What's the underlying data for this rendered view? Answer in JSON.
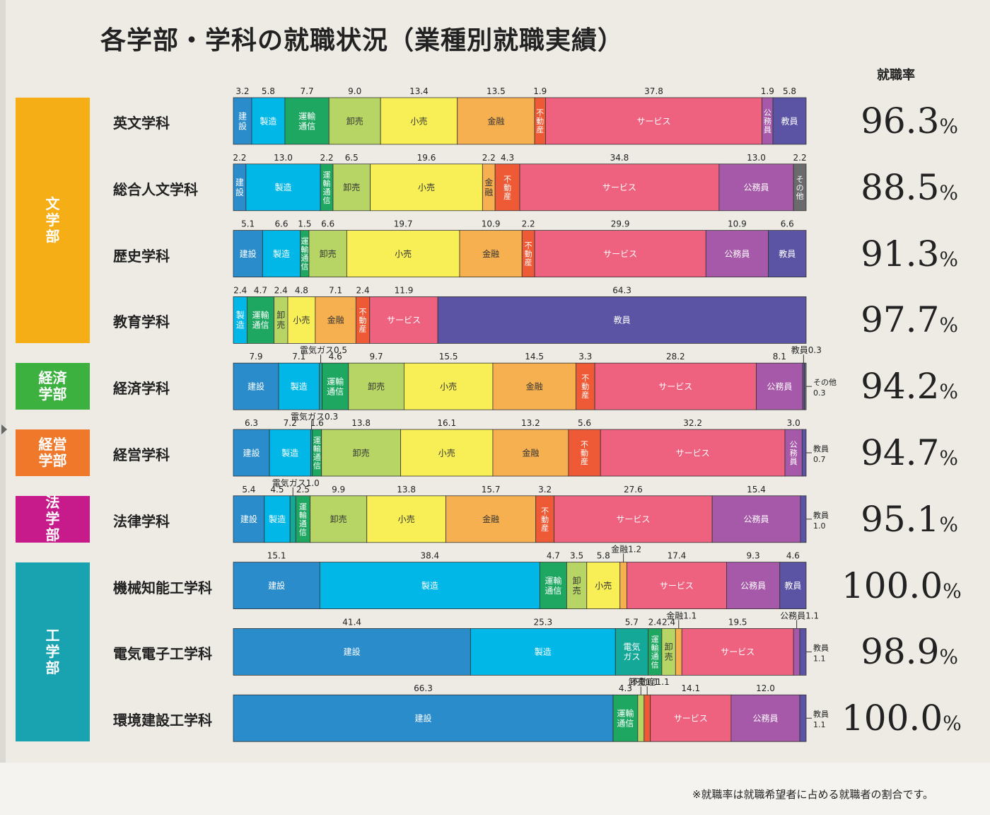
{
  "title": "各学部・学科の就職状況（業種別就職実績）",
  "rate_header": "就職率",
  "footnote": "※就職率は就職希望者に占める就職者の割合です。",
  "percent_sign": "%",
  "colors": {
    "建設": "#2b8ccb",
    "製造": "#00b7e8",
    "電気ガス": "#14a898",
    "運輸通信": "#1ea761",
    "卸売": "#b6d565",
    "小売": "#f7ef55",
    "金融": "#f6b050",
    "不動産": "#ee5a35",
    "サービス": "#ee6280",
    "公務員": "#a659a8",
    "教員": "#5b53a3",
    "その他": "#6b6b6b"
  },
  "faculties": [
    {
      "name": "文\n学\n部",
      "color": "#f6ae17",
      "rows": [
        0,
        3
      ]
    },
    {
      "name": "経済\n学部",
      "color": "#3cb13f",
      "rows": [
        4,
        4
      ]
    },
    {
      "name": "経営\n学部",
      "color": "#f0782a",
      "rows": [
        5,
        5
      ]
    },
    {
      "name": "法\n学\n部",
      "color": "#c71a8b",
      "rows": [
        6,
        6
      ]
    },
    {
      "name": "工\n学\n部",
      "color": "#19a3b1",
      "rows": [
        7,
        9
      ]
    }
  ],
  "chart_data": {
    "type": "bar",
    "stacked": true,
    "orientation": "horizontal",
    "unit": "%",
    "rows": [
      {
        "dept": "英文学科",
        "rate": "96.3",
        "segments": [
          {
            "cat": "建設",
            "label": "建\n設",
            "value": 3.2
          },
          {
            "cat": "製造",
            "label": "製造",
            "value": 5.8
          },
          {
            "cat": "運輸通信",
            "label": "運輸\n通信",
            "value": 7.7
          },
          {
            "cat": "卸売",
            "label": "卸売",
            "value": 9.0
          },
          {
            "cat": "小売",
            "label": "小売",
            "value": 13.4
          },
          {
            "cat": "金融",
            "label": "金融",
            "value": 13.5
          },
          {
            "cat": "不動産",
            "label": "不\n動\n産",
            "value": 1.9
          },
          {
            "cat": "サービス",
            "label": "サービス",
            "value": 37.8
          },
          {
            "cat": "公務員",
            "label": "公\n務\n員",
            "value": 1.9
          },
          {
            "cat": "教員",
            "label": "教員",
            "value": 5.8
          }
        ]
      },
      {
        "dept": "総合人文学科",
        "rate": "88.5",
        "segments": [
          {
            "cat": "建設",
            "label": "建\n設",
            "value": 2.2
          },
          {
            "cat": "製造",
            "label": "製造",
            "value": 13.0
          },
          {
            "cat": "運輸通信",
            "label": "運\n輸\n通\n信",
            "value": 2.2
          },
          {
            "cat": "卸売",
            "label": "卸売",
            "value": 6.5
          },
          {
            "cat": "小売",
            "label": "小売",
            "value": 19.6
          },
          {
            "cat": "金融",
            "label": "金\n融",
            "value": 2.2
          },
          {
            "cat": "不動産",
            "label": "不\n動\n産",
            "value": 4.3
          },
          {
            "cat": "サービス",
            "label": "サービス",
            "value": 34.8
          },
          {
            "cat": "公務員",
            "label": "公務員",
            "value": 13.0
          },
          {
            "cat": "その他",
            "label": "そ\nの\n他",
            "value": 2.2
          }
        ]
      },
      {
        "dept": "歴史学科",
        "rate": "91.3",
        "segments": [
          {
            "cat": "建設",
            "label": "建設",
            "value": 5.1
          },
          {
            "cat": "製造",
            "label": "製造",
            "value": 6.6
          },
          {
            "cat": "運輸通信",
            "label": "運\n輸\n通\n信",
            "value": 1.5
          },
          {
            "cat": "卸売",
            "label": "卸売",
            "value": 6.6
          },
          {
            "cat": "小売",
            "label": "小売",
            "value": 19.7
          },
          {
            "cat": "金融",
            "label": "金融",
            "value": 10.9
          },
          {
            "cat": "不動産",
            "label": "不\n動\n産",
            "value": 2.2
          },
          {
            "cat": "サービス",
            "label": "サービス",
            "value": 29.9
          },
          {
            "cat": "公務員",
            "label": "公務員",
            "value": 10.9
          },
          {
            "cat": "教員",
            "label": "教員",
            "value": 6.6
          }
        ]
      },
      {
        "dept": "教育学科",
        "rate": "97.7",
        "segments": [
          {
            "cat": "製造",
            "label": "製\n造",
            "value": 2.4
          },
          {
            "cat": "運輸通信",
            "label": "運輸\n通信",
            "value": 4.7
          },
          {
            "cat": "卸売",
            "label": "卸\n売",
            "value": 2.4
          },
          {
            "cat": "小売",
            "label": "小売",
            "value": 4.8
          },
          {
            "cat": "金融",
            "label": "金融",
            "value": 7.1
          },
          {
            "cat": "不動産",
            "label": "不\n動\n産",
            "value": 2.4
          },
          {
            "cat": "サービス",
            "label": "サービス",
            "value": 11.9
          },
          {
            "cat": "教員",
            "label": "教員",
            "value": 64.3
          }
        ]
      },
      {
        "dept": "経済学科",
        "rate": "94.2",
        "segments": [
          {
            "cat": "建設",
            "label": "建設",
            "value": 7.9
          },
          {
            "cat": "製造",
            "label": "製造",
            "value": 7.1
          },
          {
            "cat": "電気ガス",
            "label": "",
            "value": 0.5,
            "callout": "電気ガス0.5"
          },
          {
            "cat": "運輸通信",
            "label": "運輸\n通信",
            "value": 4.6
          },
          {
            "cat": "卸売",
            "label": "卸売",
            "value": 9.7
          },
          {
            "cat": "小売",
            "label": "小売",
            "value": 15.5
          },
          {
            "cat": "金融",
            "label": "金融",
            "value": 14.5
          },
          {
            "cat": "不動産",
            "label": "不\n動\n産",
            "value": 3.3
          },
          {
            "cat": "サービス",
            "label": "サービス",
            "value": 28.2
          },
          {
            "cat": "公務員",
            "label": "公務員",
            "value": 8.1
          },
          {
            "cat": "教員",
            "label": "",
            "value": 0.3,
            "callout": "教員0.3"
          },
          {
            "cat": "その他",
            "label": "",
            "value": 0.3,
            "side": "その他\n0.3"
          }
        ]
      },
      {
        "dept": "経営学科",
        "rate": "94.7",
        "segments": [
          {
            "cat": "建設",
            "label": "建設",
            "value": 6.3
          },
          {
            "cat": "製造",
            "label": "製造",
            "value": 7.2
          },
          {
            "cat": "電気ガス",
            "label": "",
            "value": 0.3,
            "callout": "電気ガス0.3"
          },
          {
            "cat": "運輸通信",
            "label": "運\n輸\n通\n信",
            "value": 1.6
          },
          {
            "cat": "卸売",
            "label": "卸売",
            "value": 13.8
          },
          {
            "cat": "小売",
            "label": "小売",
            "value": 16.1
          },
          {
            "cat": "金融",
            "label": "金融",
            "value": 13.2
          },
          {
            "cat": "不動産",
            "label": "不\n動\n産",
            "value": 5.6
          },
          {
            "cat": "サービス",
            "label": "サービス",
            "value": 32.2
          },
          {
            "cat": "公務員",
            "label": "公\n務\n員",
            "value": 3.0
          },
          {
            "cat": "教員",
            "label": "",
            "value": 0.7,
            "side": "教員\n0.7"
          }
        ]
      },
      {
        "dept": "法律学科",
        "rate": "95.1",
        "segments": [
          {
            "cat": "建設",
            "label": "建設",
            "value": 5.4
          },
          {
            "cat": "製造",
            "label": "製造",
            "value": 4.5
          },
          {
            "cat": "電気ガス",
            "label": "",
            "value": 1.0,
            "callout": "電気ガス1.0"
          },
          {
            "cat": "運輸通信",
            "label": "運\n輸\n通\n信",
            "value": 2.5
          },
          {
            "cat": "卸売",
            "label": "卸売",
            "value": 9.9
          },
          {
            "cat": "小売",
            "label": "小売",
            "value": 13.8
          },
          {
            "cat": "金融",
            "label": "金融",
            "value": 15.7
          },
          {
            "cat": "不動産",
            "label": "不\n動\n産",
            "value": 3.2
          },
          {
            "cat": "サービス",
            "label": "サービス",
            "value": 27.6
          },
          {
            "cat": "公務員",
            "label": "公務員",
            "value": 15.4
          },
          {
            "cat": "教員",
            "label": "",
            "value": 1.0,
            "side": "教員\n1.0"
          }
        ]
      },
      {
        "dept": "機械知能工学科",
        "rate": "100.0",
        "segments": [
          {
            "cat": "建設",
            "label": "建設",
            "value": 15.1
          },
          {
            "cat": "製造",
            "label": "製造",
            "value": 38.4
          },
          {
            "cat": "運輸通信",
            "label": "運輸\n通信",
            "value": 4.7
          },
          {
            "cat": "卸売",
            "label": "卸\n売",
            "value": 3.5
          },
          {
            "cat": "小売",
            "label": "小売",
            "value": 5.8
          },
          {
            "cat": "金融",
            "label": "",
            "value": 1.2,
            "callout": "金融1.2"
          },
          {
            "cat": "サービス",
            "label": "サービス",
            "value": 17.4
          },
          {
            "cat": "公務員",
            "label": "公務員",
            "value": 9.3
          },
          {
            "cat": "教員",
            "label": "教員",
            "value": 4.6
          }
        ]
      },
      {
        "dept": "電気電子工学科",
        "rate": "98.9",
        "segments": [
          {
            "cat": "建設",
            "label": "建設",
            "value": 41.4
          },
          {
            "cat": "製造",
            "label": "製造",
            "value": 25.3
          },
          {
            "cat": "電気ガス",
            "label": "電気\nガス",
            "value": 5.7
          },
          {
            "cat": "運輸通信",
            "label": "運\n輸\n通\n信",
            "value": 2.4
          },
          {
            "cat": "卸売",
            "label": "卸\n売",
            "value": 2.4
          },
          {
            "cat": "金融",
            "label": "",
            "value": 1.1,
            "callout": "金融1.1"
          },
          {
            "cat": "サービス",
            "label": "サービス",
            "value": 19.5
          },
          {
            "cat": "公務員",
            "label": "",
            "value": 1.1,
            "callout": "公務員1.1"
          },
          {
            "cat": "教員",
            "label": "",
            "value": 1.1,
            "side": "教員\n1.1"
          }
        ]
      },
      {
        "dept": "環境建設工学科",
        "rate": "100.0",
        "segments": [
          {
            "cat": "建設",
            "label": "建設",
            "value": 66.3
          },
          {
            "cat": "運輸通信",
            "label": "運輸\n通信",
            "value": 4.3
          },
          {
            "cat": "卸売",
            "label": "",
            "value": 1.1,
            "callout": "卸売1.1"
          },
          {
            "cat": "不動産",
            "label": "",
            "value": 1.1,
            "callout": "不動産1.1"
          },
          {
            "cat": "サービス",
            "label": "サービス",
            "value": 14.1
          },
          {
            "cat": "公務員",
            "label": "公務員",
            "value": 12.0
          },
          {
            "cat": "教員",
            "label": "",
            "value": 1.1,
            "side": "教員\n1.1"
          }
        ]
      }
    ]
  }
}
